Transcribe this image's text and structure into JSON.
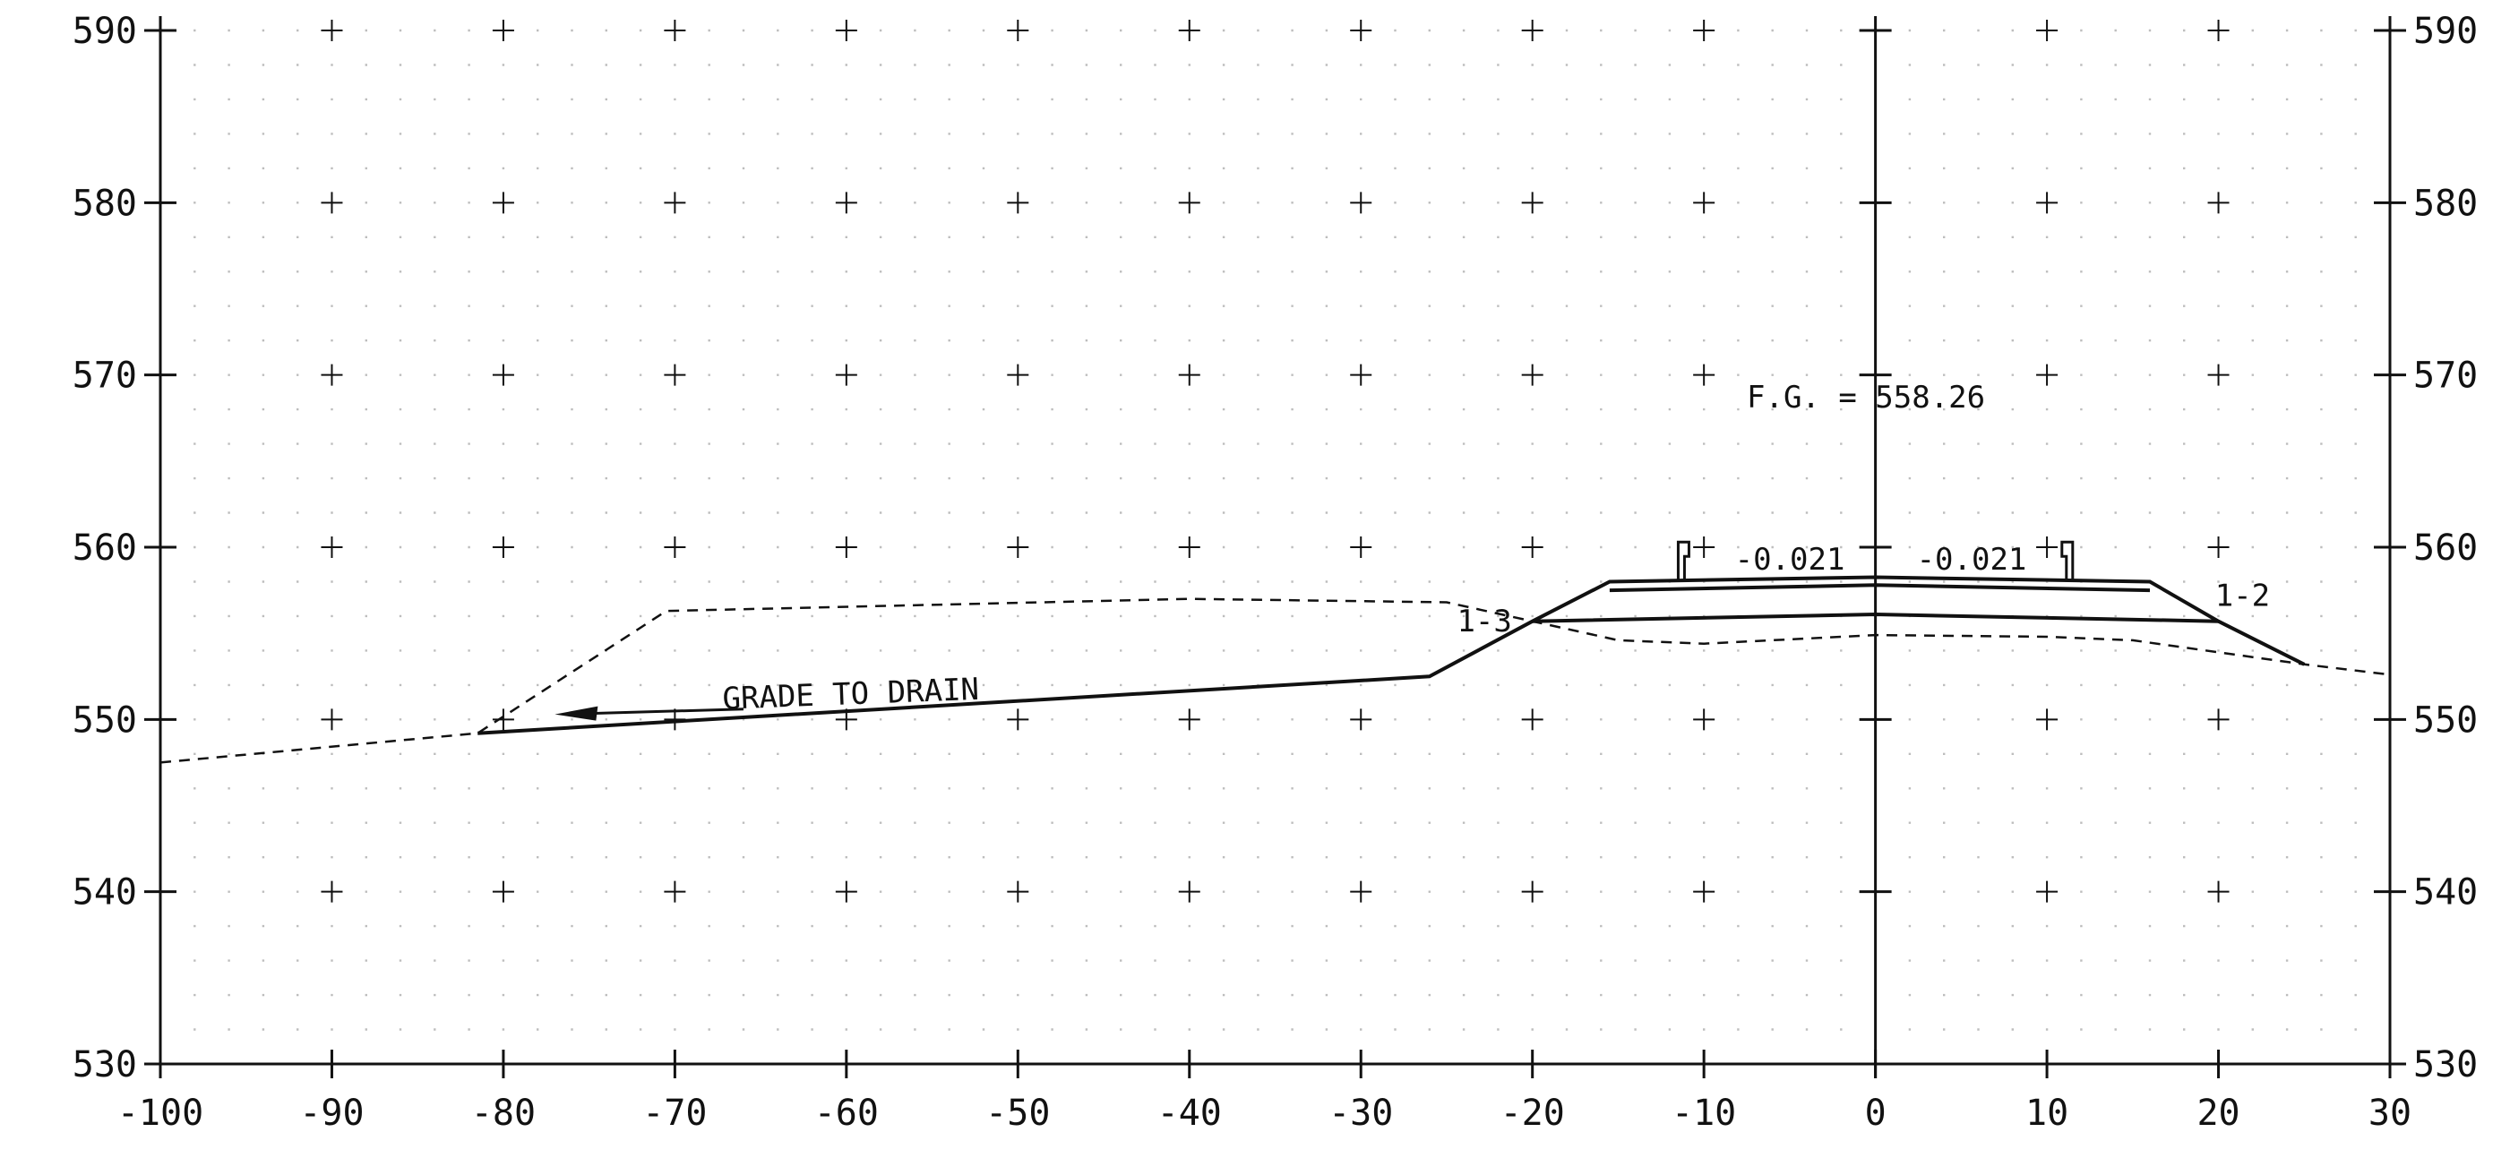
{
  "section": {
    "x_axis": {
      "min": -100,
      "max": 30,
      "step": 10,
      "tick_labels": [
        "-100",
        "-90",
        "-80",
        "-70",
        "-60",
        "-50",
        "-40",
        "-30",
        "-20",
        "-10",
        "0",
        "10",
        "20",
        "30"
      ]
    },
    "y_axis": {
      "min": 530,
      "max": 590,
      "step": 10,
      "tick_labels": [
        "530",
        "540",
        "550",
        "560",
        "570",
        "580",
        "590"
      ]
    },
    "grid": "dotted with cross markers at 10 x 10 intersections",
    "colors": {
      "line": "#111111",
      "grid_dot": "#bdbdbd",
      "background": "#ffffff"
    },
    "existing_ground": {
      "style": "dashed",
      "points": [
        [
          -100,
          547.5
        ],
        [
          -81.5,
          549.2
        ],
        [
          -70.5,
          556.3
        ],
        [
          -40,
          557
        ],
        [
          -25,
          556.8
        ],
        [
          -15,
          554.6
        ],
        [
          -10,
          554.4
        ],
        [
          0,
          554.9
        ],
        [
          10,
          554.8
        ],
        [
          15,
          554.6
        ],
        [
          25,
          553.2
        ],
        [
          30,
          552.6
        ]
      ]
    },
    "proposed_grade": {
      "style": "solid",
      "points": [
        [
          -81.5,
          549.2
        ],
        [
          -26,
          552.5
        ],
        [
          -20,
          555.7
        ],
        [
          -15.5,
          558
        ],
        [
          0,
          558.26
        ],
        [
          16,
          558
        ],
        [
          20,
          555.7
        ],
        [
          25,
          553.2
        ]
      ]
    },
    "pavement_layers": [
      {
        "points": [
          [
            -15.5,
            557.5
          ],
          [
            0,
            557.8
          ],
          [
            16,
            557.5
          ]
        ]
      },
      {
        "points": [
          [
            -20,
            555.7
          ],
          [
            0,
            556.1
          ],
          [
            20,
            555.7
          ]
        ]
      }
    ],
    "curbs": [
      {
        "x": -11.5,
        "top": 560.3,
        "base": 558.1
      },
      {
        "x": 11.5,
        "top": 560.3,
        "base": 558.1
      }
    ],
    "annotations": {
      "finish_grade": "F.G. = 558.26",
      "slope_left": "-0.021",
      "slope_right": "-0.021",
      "side_slope_left": "1-3",
      "side_slope_right": "1-2",
      "grade_note": "GRADE TO DRAIN"
    }
  }
}
